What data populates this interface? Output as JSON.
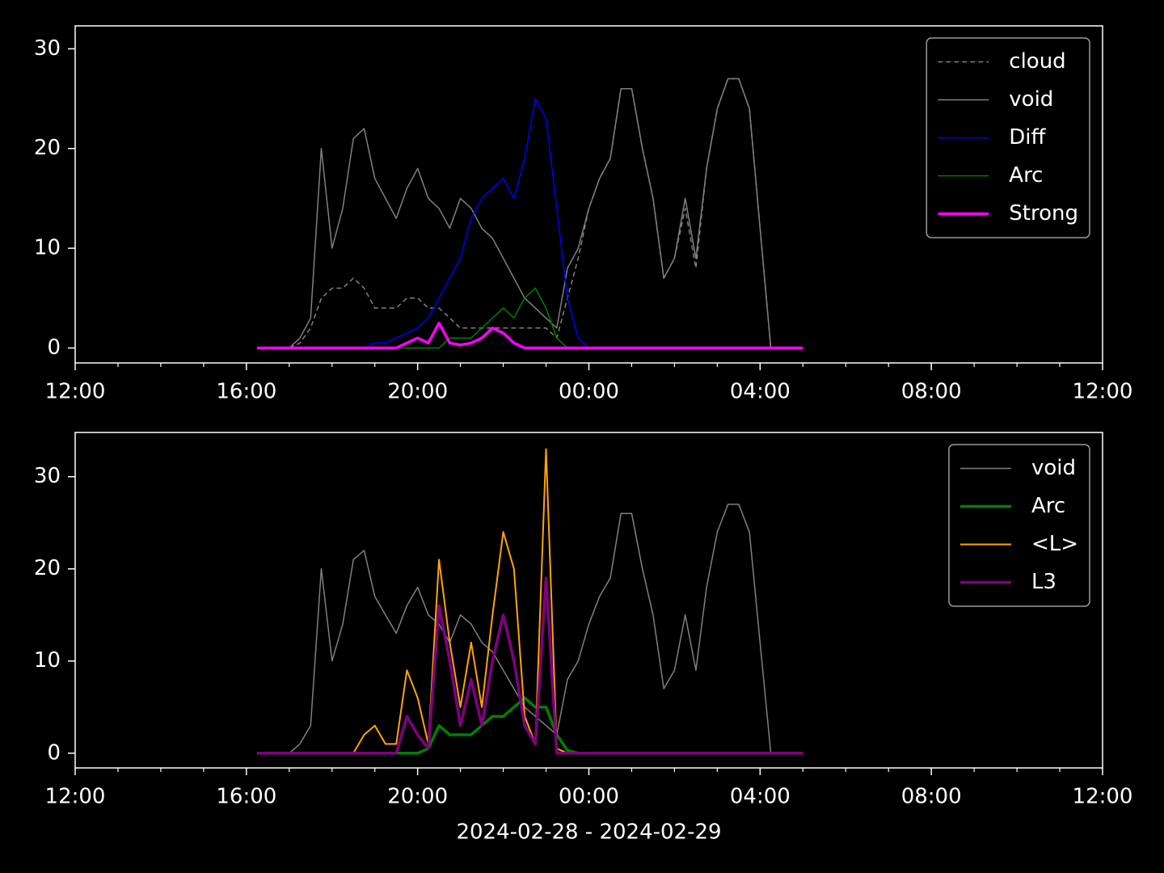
{
  "chart_data": [
    {
      "type": "line",
      "x": [
        4.25,
        4.5,
        4.75,
        5,
        5.25,
        5.5,
        5.75,
        6,
        6.25,
        6.5,
        6.75,
        7,
        7.25,
        7.5,
        7.75,
        8,
        8.25,
        8.5,
        8.75,
        9,
        9.25,
        9.5,
        9.75,
        10,
        10.25,
        10.5,
        10.75,
        11,
        11.25,
        11.5,
        11.75,
        12,
        12.25,
        12.5,
        12.75,
        13,
        13.25,
        13.5,
        13.75,
        14,
        14.25,
        14.5,
        14.75,
        15,
        15.25,
        15.5,
        15.75,
        16,
        16.25,
        16.5,
        16.75,
        17
      ],
      "series": [
        {
          "name": "cloud",
          "color": "#808080",
          "linestyle": "dashed",
          "linewidth": 1.5,
          "values": [
            0,
            0,
            0,
            0,
            0.5,
            2,
            5,
            6,
            6,
            7,
            6,
            4,
            4,
            4,
            5,
            5,
            4,
            4,
            3,
            2,
            2,
            2,
            2,
            2,
            2,
            2,
            2,
            2,
            1,
            5,
            9,
            14,
            17,
            19,
            26,
            26,
            20,
            15,
            7,
            9,
            14,
            8,
            18,
            24,
            27,
            27,
            24,
            12,
            0,
            0,
            0,
            0
          ]
        },
        {
          "name": "void",
          "color": "#808080",
          "linestyle": "solid",
          "linewidth": 1.5,
          "values": [
            0,
            0,
            0,
            0,
            1,
            3,
            20,
            10,
            14,
            21,
            22,
            17,
            15,
            13,
            16,
            18,
            15,
            14,
            12,
            15,
            14,
            12,
            11,
            9,
            7,
            5,
            4,
            3,
            2,
            8,
            10,
            14,
            17,
            19,
            26,
            26,
            20,
            15,
            7,
            9,
            15,
            9,
            18,
            24,
            27,
            27,
            24,
            12,
            0,
            0,
            0,
            0
          ]
        },
        {
          "name": "Diff",
          "color": "#0000ff",
          "linestyle": "solid",
          "linewidth": 1.5,
          "values": [
            0,
            0,
            0,
            0,
            0,
            0,
            0,
            0,
            0,
            0,
            0,
            0.5,
            0.5,
            1,
            1.5,
            2,
            3,
            5,
            7,
            9,
            13,
            15,
            16,
            17,
            15,
            19,
            25,
            23,
            14,
            5,
            1,
            0,
            0,
            0,
            0,
            0,
            0,
            0,
            0,
            0,
            0,
            0,
            0,
            0,
            0,
            0,
            0,
            0,
            0,
            0,
            0,
            0
          ]
        },
        {
          "name": "Arc",
          "color": "#008000",
          "linestyle": "solid",
          "linewidth": 1.5,
          "values": [
            0,
            0,
            0,
            0,
            0,
            0,
            0,
            0,
            0,
            0,
            0,
            0,
            0,
            0,
            0,
            0,
            0,
            0,
            1,
            1,
            1,
            2,
            3,
            4,
            3,
            5,
            6,
            4,
            1,
            0,
            0,
            0,
            0,
            0,
            0,
            0,
            0,
            0,
            0,
            0,
            0,
            0,
            0,
            0,
            0,
            0,
            0,
            0,
            0,
            0,
            0,
            0
          ]
        },
        {
          "name": "Strong",
          "color": "#ff00ff",
          "linestyle": "solid",
          "linewidth": 3.5,
          "values": [
            0,
            0,
            0,
            0,
            0,
            0,
            0,
            0,
            0,
            0,
            0,
            0,
            0,
            0,
            0.5,
            1,
            0.5,
            2.5,
            0.5,
            0.3,
            0.5,
            1,
            2,
            1.5,
            0.5,
            0,
            0,
            0,
            0,
            0,
            0,
            0,
            0,
            0,
            0,
            0,
            0,
            0,
            0,
            0,
            0,
            0,
            0,
            0,
            0,
            0,
            0,
            0,
            0,
            0,
            0,
            0
          ]
        }
      ],
      "xlim": [
        0,
        24
      ],
      "xticks": [
        {
          "value": 0,
          "label": "12:00"
        },
        {
          "value": 4,
          "label": "16:00"
        },
        {
          "value": 8,
          "label": "20:00"
        },
        {
          "value": 12,
          "label": "00:00"
        },
        {
          "value": 16,
          "label": "04:00"
        },
        {
          "value": 20,
          "label": "08:00"
        },
        {
          "value": 24,
          "label": "12:00"
        }
      ],
      "xminorticks": [
        1,
        2,
        3,
        5,
        6,
        7,
        9,
        10,
        11,
        13,
        14,
        15,
        17,
        18,
        19,
        21,
        22,
        23
      ],
      "ylim": [
        -1.5,
        32.3
      ],
      "yticks": [
        0,
        10,
        20,
        30
      ],
      "legend": "upper right"
    },
    {
      "type": "line",
      "x": [
        4.25,
        4.5,
        4.75,
        5,
        5.25,
        5.5,
        5.75,
        6,
        6.25,
        6.5,
        6.75,
        7,
        7.25,
        7.5,
        7.75,
        8,
        8.25,
        8.5,
        8.75,
        9,
        9.25,
        9.5,
        9.75,
        10,
        10.25,
        10.5,
        10.75,
        11,
        11.25,
        11.5,
        11.75,
        12,
        12.25,
        12.5,
        12.75,
        13,
        13.25,
        13.5,
        13.75,
        14,
        14.25,
        14.5,
        14.75,
        15,
        15.25,
        15.5,
        15.75,
        16,
        16.25,
        16.5,
        16.75,
        17
      ],
      "series": [
        {
          "name": "void",
          "color": "#808080",
          "linestyle": "solid",
          "linewidth": 1.5,
          "values": [
            0,
            0,
            0,
            0,
            1,
            3,
            20,
            10,
            14,
            21,
            22,
            17,
            15,
            13,
            16,
            18,
            15,
            14,
            12,
            15,
            14,
            12,
            11,
            9,
            7,
            5,
            4,
            3,
            2,
            8,
            10,
            14,
            17,
            19,
            26,
            26,
            20,
            15,
            7,
            9,
            15,
            9,
            18,
            24,
            27,
            27,
            24,
            12,
            0,
            0,
            0,
            0
          ]
        },
        {
          "name": "Arc",
          "color": "#008000",
          "linestyle": "solid",
          "linewidth": 3.5,
          "values": [
            0,
            0,
            0,
            0,
            0,
            0,
            0,
            0,
            0,
            0,
            0,
            0,
            0,
            0,
            0,
            0,
            0.5,
            3,
            2,
            2,
            2,
            3,
            4,
            4,
            5,
            6,
            5,
            5,
            2,
            0.3,
            0,
            0,
            0,
            0,
            0,
            0,
            0,
            0,
            0,
            0,
            0,
            0,
            0,
            0,
            0,
            0,
            0,
            0,
            0,
            0,
            0,
            0
          ]
        },
        {
          "name": "<L>",
          "color": "#ffa500",
          "linestyle": "solid",
          "linewidth": 2,
          "values": [
            0,
            0,
            0,
            0,
            0,
            0,
            0,
            0,
            0,
            0,
            2,
            3,
            1,
            1,
            9,
            6,
            1,
            21,
            12,
            5,
            12,
            5,
            15,
            24,
            20,
            4,
            1,
            33,
            0.5,
            0,
            0,
            0,
            0,
            0,
            0,
            0,
            0,
            0,
            0,
            0,
            0,
            0,
            0,
            0,
            0,
            0,
            0,
            0,
            0,
            0,
            0,
            0
          ]
        },
        {
          "name": "L3",
          "color": "#800080",
          "linestyle": "solid",
          "linewidth": 3.5,
          "values": [
            0,
            0,
            0,
            0,
            0,
            0,
            0,
            0,
            0,
            0,
            0,
            0,
            0,
            0,
            4,
            2,
            0.5,
            16,
            10,
            3,
            8,
            3,
            10,
            15,
            10,
            3,
            1,
            19,
            0,
            0,
            0,
            0,
            0,
            0,
            0,
            0,
            0,
            0,
            0,
            0,
            0,
            0,
            0,
            0,
            0,
            0,
            0,
            0,
            0,
            0,
            0,
            0
          ]
        }
      ],
      "xlim": [
        0,
        24
      ],
      "xticks": [
        {
          "value": 0,
          "label": "12:00"
        },
        {
          "value": 4,
          "label": "16:00"
        },
        {
          "value": 8,
          "label": "20:00"
        },
        {
          "value": 12,
          "label": "00:00"
        },
        {
          "value": 16,
          "label": "04:00"
        },
        {
          "value": 20,
          "label": "08:00"
        },
        {
          "value": 24,
          "label": "12:00"
        }
      ],
      "xminorticks": [
        1,
        2,
        3,
        5,
        6,
        7,
        9,
        10,
        11,
        13,
        14,
        15,
        17,
        18,
        19,
        21,
        22,
        23
      ],
      "ylim": [
        -1.6,
        34.8
      ],
      "yticks": [
        0,
        10,
        20,
        30
      ],
      "xlabel": "2024-02-28 - 2024-02-29",
      "legend": "upper right"
    }
  ]
}
